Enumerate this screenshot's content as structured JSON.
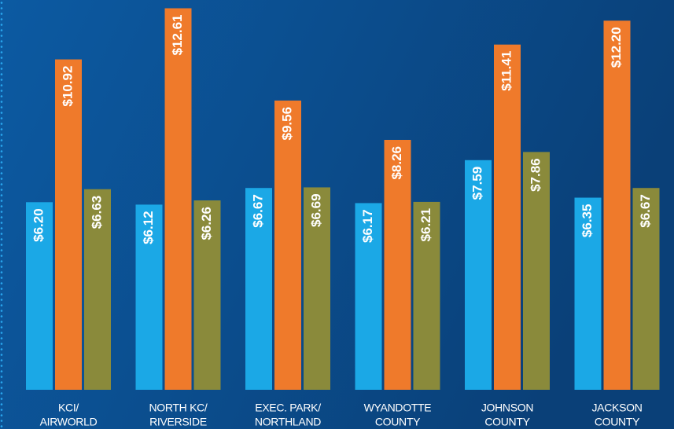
{
  "chart_data": {
    "type": "bar",
    "categories": [
      [
        "KCI/",
        "AIRWORLD"
      ],
      [
        "NORTH KC/",
        "RIVERSIDE"
      ],
      [
        "EXEC. PARK/",
        "NORTHLAND"
      ],
      [
        "WYANDOTTE",
        "COUNTY"
      ],
      [
        "JOHNSON",
        "COUNTY"
      ],
      [
        "JACKSON",
        "COUNTY"
      ]
    ],
    "series": [
      {
        "color": "#1ba8e6",
        "values": [
          6.2,
          6.12,
          6.67,
          6.17,
          7.59,
          6.35
        ],
        "value_labels": [
          "$6.20",
          "$6.12",
          "$6.67",
          "$6.17",
          "$7.59",
          "$6.35"
        ]
      },
      {
        "color": "#ef7a2b",
        "values": [
          10.92,
          12.61,
          9.56,
          8.26,
          11.41,
          12.2
        ],
        "value_labels": [
          "$10.92",
          "$12.61",
          "$9.56",
          "$8.26",
          "$11.41",
          "$12.20"
        ]
      },
      {
        "color": "#8a8a3b",
        "values": [
          6.63,
          6.26,
          6.69,
          6.21,
          7.86,
          6.67
        ],
        "value_labels": [
          "$6.63",
          "$6.26",
          "$6.69",
          "$6.21",
          "$7.86",
          "$6.67"
        ]
      }
    ]
  }
}
